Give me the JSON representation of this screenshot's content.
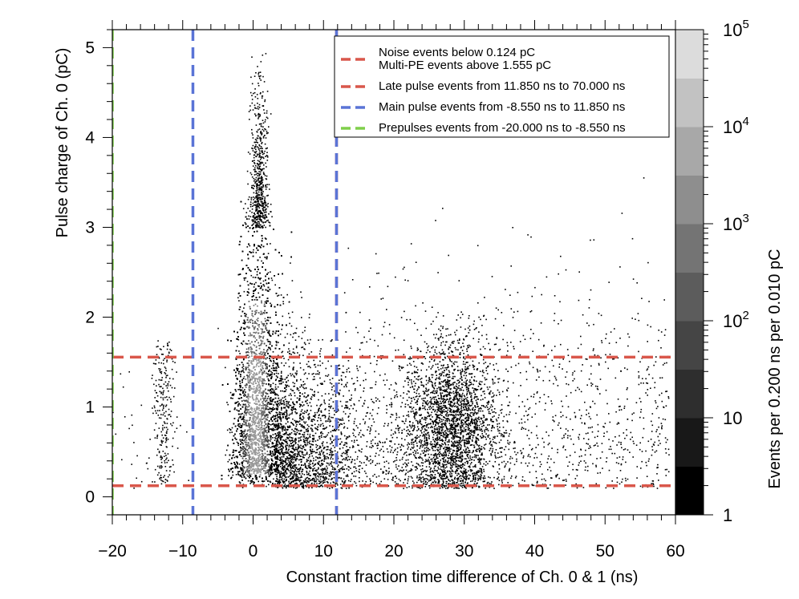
{
  "chart_data": {
    "type": "heatmap",
    "xlabel": "Constant fraction time difference of Ch. 0 & 1 (ns)",
    "ylabel": "Pulse charge of Ch. 0 (pC)",
    "xlim": [
      -20,
      60
    ],
    "ylim": [
      -0.2,
      5.2
    ],
    "xticks": [
      -20,
      -10,
      0,
      10,
      20,
      30,
      40,
      50,
      60
    ],
    "xtick_labels": [
      "−20",
      "−10",
      "0",
      "10",
      "20",
      "30",
      "40",
      "50",
      "60"
    ],
    "yticks": [
      0,
      1,
      2,
      3,
      4,
      5
    ],
    "ytick_labels": [
      "0",
      "1",
      "2",
      "3",
      "4",
      "5"
    ],
    "colorbar": {
      "label": "Events per 0.200 ns per 0.010 pC",
      "scale": "log",
      "range": [
        1,
        100000
      ],
      "tick_labels": [
        {
          "value": 1,
          "base": "1",
          "exp": ""
        },
        {
          "value": 10,
          "base": "10",
          "exp": ""
        },
        {
          "value": 100,
          "base": "10",
          "exp": "2"
        },
        {
          "value": 1000,
          "base": "10",
          "exp": "3"
        },
        {
          "value": 10000,
          "base": "10",
          "exp": "4"
        },
        {
          "value": 100000,
          "base": "10",
          "exp": "5"
        }
      ],
      "levels_filled": 9,
      "colors": [
        "#000000",
        "#181818",
        "#2e2e2e",
        "#454545",
        "#5c5c5c",
        "#747474",
        "#8e8e8e",
        "#a8a8a8",
        "#c2c2c2",
        "#dcdcdc"
      ]
    },
    "cut_lines": [
      {
        "orientation": "horizontal",
        "value": 0.124,
        "color": "#d9574b"
      },
      {
        "orientation": "horizontal",
        "value": 1.555,
        "color": "#d9574b"
      },
      {
        "orientation": "vertical",
        "value": 11.85,
        "color": "#d9574b"
      },
      {
        "orientation": "vertical",
        "value": -8.55,
        "color": "#5a74d6"
      },
      {
        "orientation": "vertical",
        "value": 11.85,
        "color": "#5a74d6"
      },
      {
        "orientation": "vertical",
        "value": -20.0,
        "color": "#7fcf4a"
      }
    ],
    "legend": {
      "position": "top-right",
      "entries": [
        {
          "lines": [
            "Noise events below 0.124 pC",
            "Multi-PE events above 1.555 pC"
          ],
          "color": "#d9574b"
        },
        {
          "lines": [
            "Late pulse events from 11.850 ns to 70.000 ns"
          ],
          "color": "#d9574b"
        },
        {
          "lines": [
            "Main pulse events from -8.550 ns to 11.850 ns"
          ],
          "color": "#5a74d6"
        },
        {
          "lines": [
            "Prepulses events from -20.000 ns to -8.550 ns"
          ],
          "color": "#7fcf4a"
        }
      ]
    },
    "clusters": [
      {
        "name": "main",
        "x_center": 0.3,
        "x_sigma": 1.2,
        "x_tail": 4.0,
        "y_peak": 1.0,
        "y_max": 4.9,
        "y_min": 0.1,
        "density": "very high"
      },
      {
        "name": "late",
        "x_center": 28.0,
        "x_sigma": 3.0,
        "y_center": 0.8,
        "y_max": 2.6,
        "density": "medium"
      },
      {
        "name": "pre",
        "x_center": -12.8,
        "x_sigma": 0.8,
        "y_center": 0.9,
        "y_max": 1.8,
        "density": "low"
      }
    ]
  }
}
